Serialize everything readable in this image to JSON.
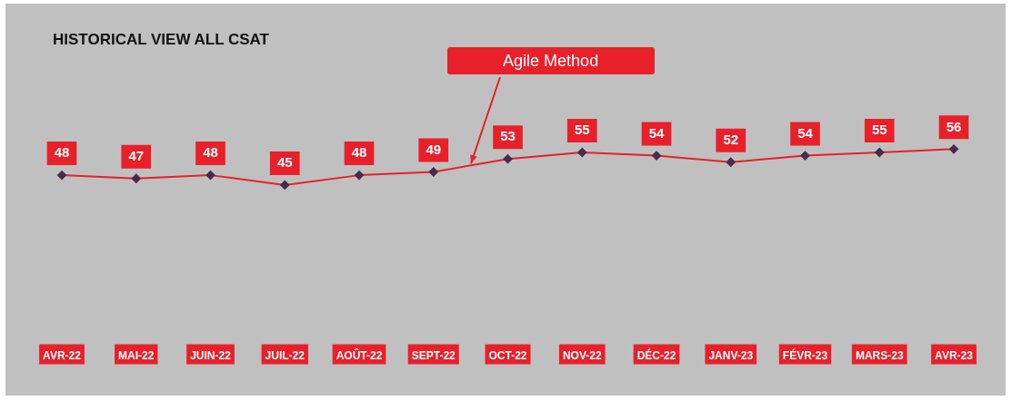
{
  "chart_data": {
    "type": "line",
    "title": "HISTORICAL VIEW ALL CSAT",
    "categories": [
      "AVR-22",
      "MAI-22",
      "JUIN-22",
      "JUIL-22",
      "AOÛT-22",
      "SEPT-22",
      "OCT-22",
      "NOV-22",
      "DÉC-22",
      "JANV-23",
      "FÉVR-23",
      "MARS-23",
      "AVR-23"
    ],
    "series": [
      {
        "color": "#e8202a",
        "values": [
          48,
          47,
          48,
          45,
          48,
          49,
          53,
          55,
          54,
          52,
          54,
          55,
          56
        ]
      }
    ],
    "data_labels": true,
    "marker": "diamond",
    "line_style": "solid",
    "grid": false,
    "legend": false,
    "tick_labels": "x",
    "annotations": [
      "Agile Method"
    ]
  }
}
